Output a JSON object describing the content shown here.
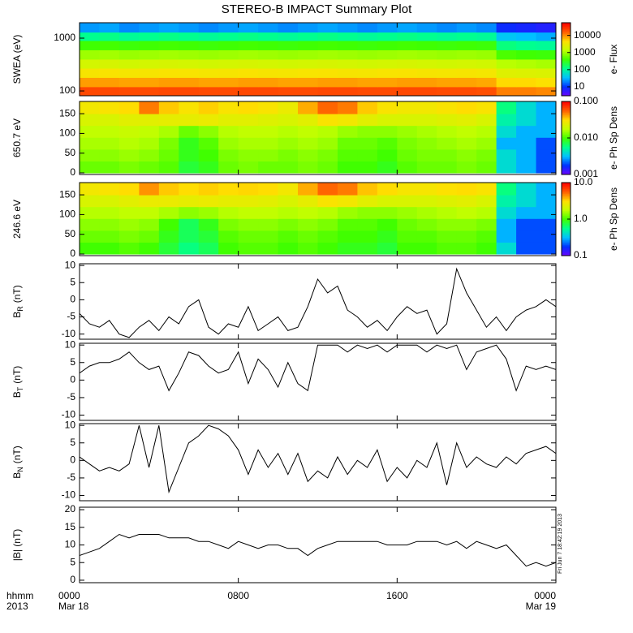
{
  "title": "STEREO-B IMPACT Summary Plot",
  "timestamp": "Fri Jun  7 18:42:19 2013",
  "colormap": [
    "#7000ff",
    "#0030ff",
    "#00c0ff",
    "#00ff90",
    "#40ff00",
    "#c0ff00",
    "#ffe000",
    "#ff6000",
    "#ff0000"
  ],
  "x_axis": {
    "name": "hhmm",
    "year": "2013",
    "xlim": [
      0,
      24
    ],
    "xticks": [
      {
        "value": 0,
        "label": "0000"
      },
      {
        "value": 8,
        "label": "0800"
      },
      {
        "value": 16,
        "label": "1600"
      },
      {
        "value": 24,
        "label": "0000"
      }
    ],
    "dates": [
      {
        "value": 0,
        "label": "Mar 18"
      },
      {
        "value": 24,
        "label": "Mar 19"
      }
    ]
  },
  "chart_data": [
    {
      "type": "heatmap",
      "ylabel": "SWEA (eV)",
      "log_y": true,
      "ylim": [
        81,
        1960
      ],
      "yticks": [
        100,
        1000
      ],
      "x_bins": [
        0,
        1,
        2,
        3,
        4,
        5,
        6,
        7,
        8,
        9,
        10,
        11,
        12,
        13,
        14,
        15,
        16,
        17,
        18,
        19,
        20,
        21,
        22,
        23,
        24
      ],
      "y_bins": [
        81,
        120,
        180,
        270,
        400,
        600,
        900,
        1300,
        1960
      ],
      "values": [
        [
          22000,
          22000,
          21000,
          21000,
          22000,
          22000,
          21000,
          21000,
          22000,
          22000,
          21000,
          21000,
          22000,
          22000,
          21000,
          21000,
          22000,
          22000,
          21000,
          21000,
          20000,
          12000,
          12000,
          11000
        ],
        [
          9000,
          9000,
          8500,
          8500,
          9000,
          9000,
          8500,
          8500,
          9000,
          9000,
          8500,
          8500,
          9000,
          9000,
          8500,
          8500,
          9000,
          9000,
          8500,
          8500,
          8000,
          5000,
          5000,
          4500
        ],
        [
          4000,
          4200,
          3900,
          4000,
          4200,
          4100,
          3900,
          4000,
          4200,
          4000,
          3900,
          4100,
          4200,
          4000,
          3900,
          4100,
          4200,
          4000,
          3900,
          4000,
          3800,
          2500,
          2400,
          2300
        ],
        [
          2000,
          2100,
          1900,
          2000,
          2100,
          2000,
          1900,
          2000,
          2100,
          2000,
          1900,
          2000,
          2100,
          2000,
          1900,
          2000,
          2100,
          2000,
          1900,
          2000,
          1900,
          1300,
          1200,
          1100
        ],
        [
          1000,
          1050,
          950,
          1000,
          1050,
          1000,
          950,
          1000,
          1050,
          1000,
          950,
          1000,
          1050,
          1000,
          950,
          1000,
          1050,
          1000,
          950,
          1000,
          950,
          450,
          400,
          380
        ],
        [
          400,
          420,
          380,
          400,
          420,
          400,
          380,
          400,
          420,
          400,
          380,
          400,
          420,
          400,
          380,
          400,
          420,
          400,
          380,
          400,
          380,
          140,
          120,
          110
        ],
        [
          120,
          130,
          110,
          120,
          130,
          120,
          110,
          120,
          130,
          120,
          110,
          120,
          130,
          120,
          110,
          120,
          130,
          120,
          110,
          120,
          110,
          40,
          35,
          30
        ],
        [
          25,
          28,
          22,
          25,
          28,
          25,
          22,
          25,
          28,
          25,
          22,
          25,
          28,
          25,
          22,
          25,
          28,
          25,
          22,
          25,
          22,
          9,
          8,
          7
        ]
      ],
      "clim": [
        3,
        55000
      ],
      "cticks": [
        10,
        100,
        1000,
        10000
      ],
      "clabel": "e- Flux"
    },
    {
      "type": "heatmap",
      "ylabel": "650.7 eV",
      "ylim": [
        -4,
        181
      ],
      "yticks": [
        0,
        50,
        100,
        150
      ],
      "x_bins": [
        0,
        1,
        2,
        3,
        4,
        5,
        6,
        7,
        8,
        9,
        10,
        11,
        12,
        13,
        14,
        15,
        16,
        17,
        18,
        19,
        20,
        21,
        22,
        23,
        24
      ],
      "y_bins": [
        0,
        30,
        60,
        90,
        120,
        150,
        180
      ],
      "values": [
        [
          0.012,
          0.012,
          0.013,
          0.012,
          0.011,
          0.008,
          0.009,
          0.012,
          0.013,
          0.012,
          0.012,
          0.013,
          0.012,
          0.01,
          0.01,
          0.009,
          0.011,
          0.012,
          0.012,
          0.013,
          0.012,
          0.004,
          0.003,
          0.002
        ],
        [
          0.014,
          0.014,
          0.015,
          0.014,
          0.012,
          0.009,
          0.01,
          0.013,
          0.014,
          0.014,
          0.013,
          0.014,
          0.013,
          0.011,
          0.011,
          0.01,
          0.012,
          0.013,
          0.013,
          0.014,
          0.013,
          0.004,
          0.003,
          0.002
        ],
        [
          0.016,
          0.016,
          0.017,
          0.016,
          0.013,
          0.009,
          0.011,
          0.015,
          0.016,
          0.016,
          0.015,
          0.016,
          0.015,
          0.012,
          0.012,
          0.011,
          0.013,
          0.014,
          0.015,
          0.016,
          0.015,
          0.003,
          0.003,
          0.002
        ],
        [
          0.018,
          0.018,
          0.019,
          0.018,
          0.016,
          0.012,
          0.014,
          0.017,
          0.018,
          0.018,
          0.017,
          0.018,
          0.017,
          0.015,
          0.014,
          0.014,
          0.015,
          0.016,
          0.017,
          0.018,
          0.017,
          0.004,
          0.003,
          0.003
        ],
        [
          0.022,
          0.022,
          0.024,
          0.024,
          0.025,
          0.025,
          0.026,
          0.024,
          0.024,
          0.023,
          0.022,
          0.024,
          0.03,
          0.028,
          0.024,
          0.022,
          0.022,
          0.022,
          0.023,
          0.024,
          0.022,
          0.005,
          0.004,
          0.003
        ],
        [
          0.028,
          0.03,
          0.032,
          0.05,
          0.035,
          0.03,
          0.034,
          0.03,
          0.032,
          0.03,
          0.026,
          0.04,
          0.055,
          0.05,
          0.035,
          0.03,
          0.028,
          0.028,
          0.03,
          0.032,
          0.03,
          0.006,
          0.004,
          0.003
        ]
      ],
      "clim": [
        0.001,
        0.1
      ],
      "cticks": [
        {
          "value": 0.001,
          "label": "0.001"
        },
        {
          "value": 0.01,
          "label": "0.010"
        },
        {
          "value": 0.1,
          "label": "0.100"
        }
      ],
      "clabel": "e- Ph Sp Dens"
    },
    {
      "type": "heatmap",
      "ylabel": "246.6 eV",
      "ylim": [
        -4,
        181
      ],
      "yticks": [
        0,
        50,
        100,
        150
      ],
      "x_bins": [
        0,
        1,
        2,
        3,
        4,
        5,
        6,
        7,
        8,
        9,
        10,
        11,
        12,
        13,
        14,
        15,
        16,
        17,
        18,
        19,
        20,
        21,
        22,
        23,
        24
      ],
      "y_bins": [
        0,
        30,
        60,
        90,
        120,
        150,
        180
      ],
      "values": [
        [
          1.0,
          1.0,
          1.1,
          1.0,
          0.8,
          0.6,
          0.7,
          1.0,
          1.1,
          1.1,
          1.0,
          1.1,
          1.0,
          0.9,
          0.9,
          0.8,
          1.0,
          1.0,
          1.1,
          1.1,
          1.0,
          0.4,
          0.2,
          0.2
        ],
        [
          1.2,
          1.2,
          1.3,
          1.2,
          0.9,
          0.7,
          0.8,
          1.1,
          1.2,
          1.2,
          1.1,
          1.2,
          1.1,
          1.0,
          1.0,
          0.9,
          1.1,
          1.1,
          1.2,
          1.2,
          1.1,
          0.3,
          0.2,
          0.2
        ],
        [
          1.4,
          1.4,
          1.5,
          1.4,
          1.0,
          0.7,
          0.9,
          1.3,
          1.4,
          1.4,
          1.3,
          1.4,
          1.3,
          1.1,
          1.1,
          1.0,
          1.2,
          1.3,
          1.4,
          1.4,
          1.3,
          0.3,
          0.2,
          0.2
        ],
        [
          1.7,
          1.7,
          1.8,
          1.8,
          1.6,
          1.4,
          1.5,
          1.7,
          1.8,
          1.8,
          1.7,
          1.8,
          1.7,
          1.5,
          1.4,
          1.4,
          1.5,
          1.6,
          1.7,
          1.8,
          1.7,
          0.4,
          0.3,
          0.3
        ],
        [
          2.2,
          2.2,
          2.4,
          2.6,
          2.6,
          2.5,
          2.6,
          2.5,
          2.5,
          2.4,
          2.2,
          2.5,
          3.0,
          2.8,
          2.4,
          2.2,
          2.2,
          2.2,
          2.3,
          2.4,
          2.2,
          0.5,
          0.4,
          0.3
        ],
        [
          2.8,
          3.0,
          3.2,
          4.5,
          3.5,
          3.2,
          3.4,
          3.2,
          3.3,
          3.2,
          2.8,
          4.0,
          5.5,
          5.0,
          3.6,
          3.2,
          2.9,
          2.9,
          3.1,
          3.2,
          3.0,
          0.6,
          0.4,
          0.3
        ]
      ],
      "clim": [
        0.1,
        10
      ],
      "cticks": [
        0.1,
        {
          "value": 1,
          "label": "1.0"
        },
        {
          "value": 10,
          "label": "10.0"
        }
      ],
      "clabel": "e- Ph Sp Dens"
    },
    {
      "type": "line",
      "ylabel": "B",
      "ylabel_sub": "R",
      "ylabel_unit": "(nT)",
      "color": "#000000",
      "ylim": [
        -11.5,
        10.5
      ],
      "yticks": [
        -10,
        -5,
        0,
        5,
        10
      ],
      "x": [
        0,
        0.5,
        1,
        1.5,
        2,
        2.5,
        3,
        3.5,
        4,
        4.5,
        5,
        5.5,
        6,
        6.5,
        7,
        7.5,
        8,
        8.5,
        9,
        9.5,
        10,
        10.5,
        11,
        11.5,
        12,
        12.5,
        13,
        13.5,
        14,
        14.5,
        15,
        15.5,
        16,
        16.5,
        17,
        17.5,
        18,
        18.5,
        19,
        19.5,
        20,
        20.5,
        21,
        21.5,
        22,
        22.5,
        23,
        23.5,
        24
      ],
      "values": [
        -4,
        -7,
        -8,
        -6,
        -10,
        -11,
        -8,
        -6,
        -9,
        -5,
        -7,
        -2,
        0,
        -8,
        -10,
        -7,
        -8,
        -2,
        -9,
        -7,
        -5,
        -9,
        -8,
        -2,
        6,
        2,
        4,
        -3,
        -5,
        -8,
        -6,
        -9,
        -5,
        -2,
        -4,
        -3,
        -10,
        -7,
        9,
        2,
        -3,
        -8,
        -5,
        -9,
        -5,
        -3,
        -2,
        0,
        -2
      ]
    },
    {
      "type": "line",
      "ylabel": "B",
      "ylabel_sub": "T",
      "ylabel_unit": "(nT)",
      "color": "#000000",
      "ylim": [
        -11.5,
        10.5
      ],
      "yticks": [
        -10,
        -5,
        0,
        5,
        10
      ],
      "x": [
        0,
        0.5,
        1,
        1.5,
        2,
        2.5,
        3,
        3.5,
        4,
        4.5,
        5,
        5.5,
        6,
        6.5,
        7,
        7.5,
        8,
        8.5,
        9,
        9.5,
        10,
        10.5,
        11,
        11.5,
        12,
        12.5,
        13,
        13.5,
        14,
        14.5,
        15,
        15.5,
        16,
        16.5,
        17,
        17.5,
        18,
        18.5,
        19,
        19.5,
        20,
        20.5,
        21,
        21.5,
        22,
        22.5,
        23,
        23.5,
        24
      ],
      "values": [
        2,
        4,
        5,
        5,
        6,
        8,
        5,
        3,
        4,
        -3,
        2,
        8,
        7,
        4,
        2,
        3,
        8,
        -1,
        6,
        3,
        -2,
        5,
        -1,
        -3,
        10,
        10,
        10,
        8,
        10,
        9,
        10,
        8,
        10,
        10,
        10,
        8,
        10,
        9,
        10,
        3,
        8,
        9,
        10,
        6,
        -3,
        4,
        3,
        4,
        3
      ]
    },
    {
      "type": "line",
      "ylabel": "B",
      "ylabel_sub": "N",
      "ylabel_unit": "(nT)",
      "color": "#000000",
      "ylim": [
        -11.5,
        10.5
      ],
      "yticks": [
        -10,
        -5,
        0,
        5,
        10
      ],
      "x": [
        0,
        0.5,
        1,
        1.5,
        2,
        2.5,
        3,
        3.5,
        4,
        4.5,
        5,
        5.5,
        6,
        6.5,
        7,
        7.5,
        8,
        8.5,
        9,
        9.5,
        10,
        10.5,
        11,
        11.5,
        12,
        12.5,
        13,
        13.5,
        14,
        14.5,
        15,
        15.5,
        16,
        16.5,
        17,
        17.5,
        18,
        18.5,
        19,
        19.5,
        20,
        20.5,
        21,
        21.5,
        22,
        22.5,
        23,
        23.5,
        24
      ],
      "values": [
        1,
        -1,
        -3,
        -2,
        -3,
        -1,
        10,
        -2,
        10,
        -9,
        -2,
        5,
        7,
        10,
        9,
        7,
        3,
        -4,
        3,
        -2,
        2,
        -4,
        2,
        -6,
        -3,
        -5,
        1,
        -4,
        0,
        -2,
        3,
        -6,
        -2,
        -5,
        0,
        -2,
        5,
        -7,
        5,
        -2,
        1,
        -1,
        -2,
        1,
        -1,
        2,
        3,
        4,
        2
      ]
    },
    {
      "type": "line",
      "ylabel": "|B| (nT)",
      "color": "#000000",
      "ylim": [
        -0.7,
        20.7
      ],
      "yticks": [
        0,
        5,
        10,
        15,
        20
      ],
      "x": [
        0,
        0.5,
        1,
        1.5,
        2,
        2.5,
        3,
        3.5,
        4,
        4.5,
        5,
        5.5,
        6,
        6.5,
        7,
        7.5,
        8,
        8.5,
        9,
        9.5,
        10,
        10.5,
        11,
        11.5,
        12,
        12.5,
        13,
        13.5,
        14,
        14.5,
        15,
        15.5,
        16,
        16.5,
        17,
        17.5,
        18,
        18.5,
        19,
        19.5,
        20,
        20.5,
        21,
        21.5,
        22,
        22.5,
        23,
        23.5,
        24
      ],
      "values": [
        7,
        8,
        9,
        11,
        13,
        12,
        13,
        13,
        13,
        12,
        12,
        12,
        11,
        11,
        10,
        9,
        11,
        10,
        9,
        10,
        10,
        9,
        9,
        7,
        9,
        10,
        11,
        11,
        11,
        11,
        11,
        10,
        10,
        10,
        11,
        11,
        11,
        10,
        11,
        9,
        11,
        10,
        9,
        10,
        7,
        4,
        5,
        4,
        5
      ]
    }
  ]
}
